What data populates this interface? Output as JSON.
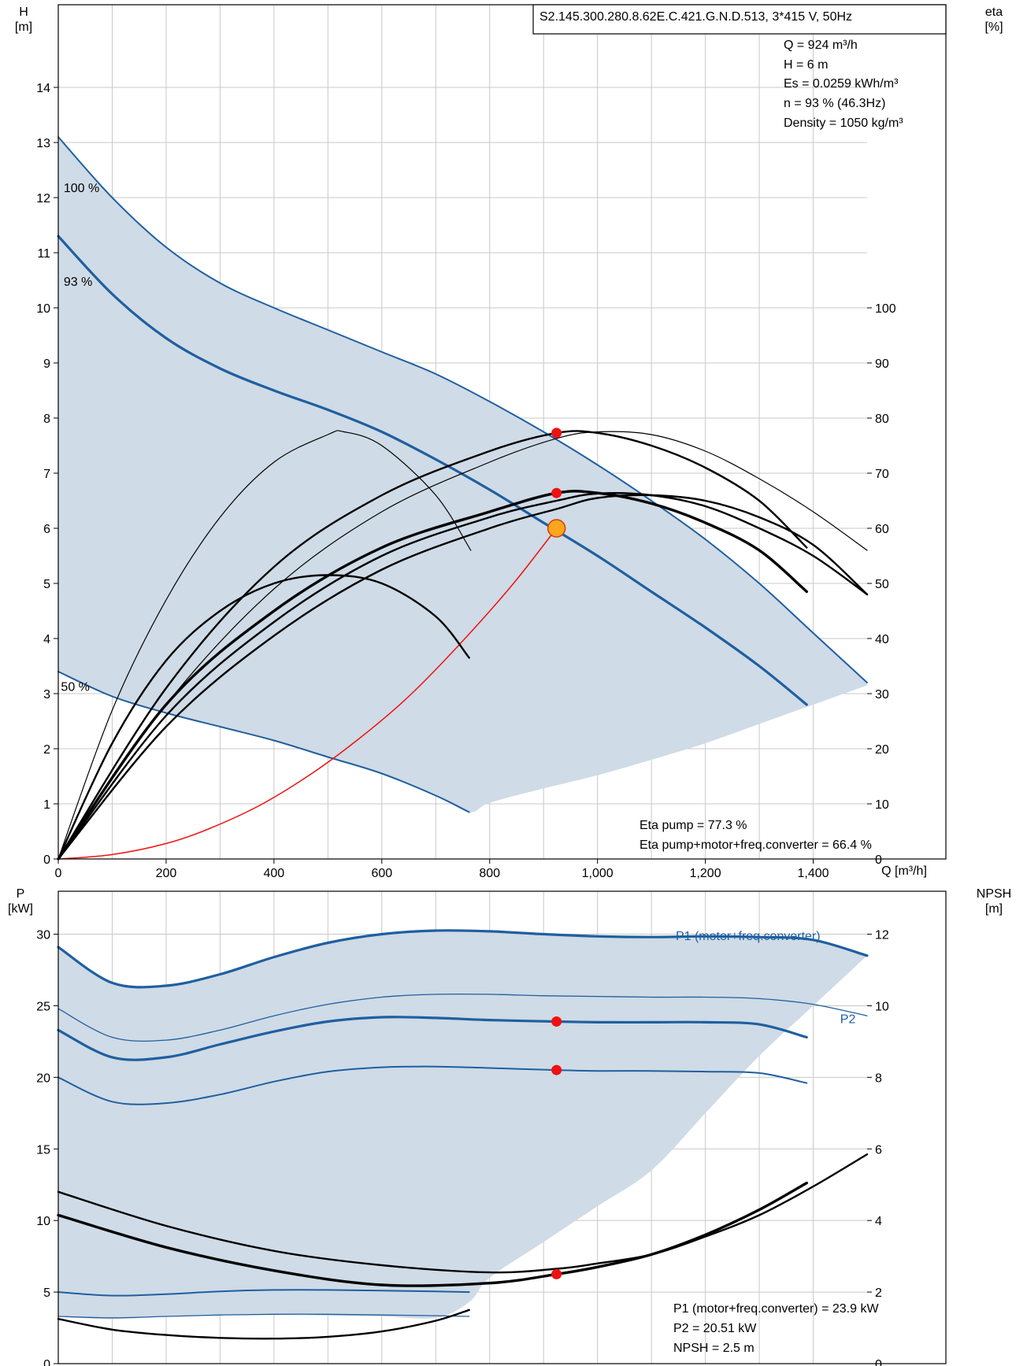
{
  "chart_data": [
    {
      "type": "line",
      "title": "S2.145.300.280.8.62E.C.421.G.N.D.513, 3*415 V, 50Hz",
      "xlabel": "Q [m³/h]",
      "ylabel_left": [
        "H",
        "[m]"
      ],
      "ylabel_right": [
        "eta",
        "[%]"
      ],
      "xlim": [
        0,
        1500
      ],
      "ylim": [
        0,
        15.5
      ],
      "ylim_right": [
        0,
        155
      ],
      "x_ticks": [
        "0",
        "200",
        "400",
        "600",
        "800",
        "1,000",
        "1,200",
        "1,400"
      ],
      "y_ticks": [
        "0",
        "1",
        "2",
        "3",
        "4",
        "5",
        "6",
        "7",
        "8",
        "9",
        "10",
        "11",
        "12",
        "13",
        "14"
      ],
      "y_ticks_right": [
        "0",
        "10",
        "20",
        "30",
        "40",
        "50",
        "60",
        "70",
        "80",
        "90",
        "100"
      ],
      "grid": true,
      "info": [
        "Q = 924 m³/h",
        "H = 6 m",
        "Es = 0.0259 kWh/m³",
        "n = 93 % (46.3Hz)",
        "Density = 1050 kg/m³"
      ],
      "footer": [
        "Eta pump = 77.3 %",
        "Eta pump+motor+freq.converter = 66.4 %"
      ],
      "curve_labels": [
        {
          "text": "100 %",
          "x": 10,
          "y": 12.1
        },
        {
          "text": "93 %",
          "x": 10,
          "y": 10.4
        },
        {
          "text": "50 %",
          "x": 5,
          "y": 3.05
        }
      ],
      "series": [
        {
          "name": "100 %",
          "axis": "left",
          "style": "blue",
          "x": [
            0,
            100,
            200,
            300,
            400,
            500,
            600,
            700,
            800,
            900,
            1000,
            1100,
            1200,
            1300,
            1400,
            1500
          ],
          "y": [
            13.1,
            12.0,
            11.1,
            10.45,
            10.0,
            9.6,
            9.2,
            8.8,
            8.3,
            7.75,
            7.15,
            6.5,
            5.8,
            5.0,
            4.1,
            3.2
          ]
        },
        {
          "name": "93 %",
          "axis": "left",
          "style": "blue-bold",
          "x": [
            0,
            100,
            200,
            300,
            400,
            500,
            600,
            700,
            800,
            900,
            1000,
            1100,
            1200,
            1300,
            1388
          ],
          "y": [
            11.3,
            10.25,
            9.45,
            8.9,
            8.5,
            8.15,
            7.75,
            7.25,
            6.7,
            6.1,
            5.5,
            4.85,
            4.2,
            3.5,
            2.8
          ]
        },
        {
          "name": "50 %",
          "axis": "left",
          "style": "blue",
          "x": [
            0,
            100,
            200,
            300,
            400,
            500,
            600,
            700,
            762
          ],
          "y": [
            3.4,
            2.95,
            2.65,
            2.4,
            2.15,
            1.85,
            1.55,
            1.15,
            0.85
          ]
        },
        {
          "name": "system curve",
          "axis": "left",
          "style": "red",
          "x": [
            0,
            100,
            200,
            280,
            375,
            470,
            560,
            650,
            740,
            840,
            924
          ],
          "y": [
            0,
            0.08,
            0.28,
            0.55,
            0.98,
            1.55,
            2.2,
            2.95,
            3.85,
            4.95,
            6.0
          ]
        },
        {
          "name": "eta pump 100%",
          "axis": "right",
          "style": "black-thin",
          "x": [
            0,
            100,
            200,
            300,
            400,
            500,
            530,
            600,
            700,
            765
          ],
          "y": [
            0,
            27,
            47,
            62,
            72,
            77,
            77.5,
            75,
            66,
            56
          ]
        },
        {
          "name": "eta pump 93%",
          "axis": "right",
          "style": "black-thin",
          "x": [
            0,
            200,
            400,
            600,
            800,
            924,
            1000,
            1100,
            1200,
            1300,
            1400,
            1500
          ],
          "y": [
            0,
            28,
            49,
            63,
            72,
            76.3,
            77.5,
            77,
            74,
            69,
            63,
            56
          ]
        },
        {
          "name": "eta pump working",
          "axis": "right",
          "style": "black",
          "x": [
            0,
            200,
            400,
            600,
            800,
            924,
            1000,
            1100,
            1200,
            1300,
            1388
          ],
          "y": [
            0,
            31,
            53,
            66,
            74,
            77.3,
            77.3,
            75,
            71,
            65,
            56.5
          ]
        },
        {
          "name": "eta motor+fc 100%",
          "axis": "right",
          "style": "black",
          "x": [
            0,
            200,
            400,
            600,
            800,
            924,
            1000,
            1100,
            1200,
            1300,
            1400,
            1500
          ],
          "y": [
            0,
            26,
            43,
            55,
            62,
            65,
            66.3,
            66,
            64,
            60,
            55,
            48
          ]
        },
        {
          "name": "eta motor+fc working",
          "axis": "right",
          "style": "black-bold",
          "x": [
            0,
            200,
            400,
            600,
            800,
            924,
            1000,
            1100,
            1200,
            1300,
            1388
          ],
          "y": [
            0,
            28,
            45,
            56.5,
            63,
            66.4,
            66.4,
            64.5,
            61,
            56,
            48.5
          ]
        },
        {
          "name": "eta motor+fc 93%",
          "axis": "right",
          "style": "black",
          "x": [
            0,
            200,
            400,
            600,
            800,
            924,
            1000,
            1100,
            1200,
            1300,
            1400,
            1500
          ],
          "y": [
            0,
            24,
            40.5,
            52.5,
            60,
            63.5,
            65.5,
            66,
            65,
            62,
            57,
            48
          ]
        },
        {
          "name": "eta 50%",
          "axis": "right",
          "style": "black",
          "x": [
            0,
            100,
            200,
            300,
            400,
            500,
            600,
            700,
            762
          ],
          "y": [
            0,
            21,
            36,
            45,
            50,
            51.5,
            50,
            44,
            36.5
          ]
        }
      ],
      "envelope": {
        "upper_x": [
          0,
          100,
          200,
          300,
          400,
          500,
          600,
          700,
          800,
          900,
          1000,
          1100,
          1200,
          1300,
          1400,
          1500
        ],
        "upper_y": [
          13.1,
          12.0,
          11.1,
          10.45,
          10.0,
          9.6,
          9.2,
          8.8,
          8.3,
          7.75,
          7.15,
          6.5,
          5.8,
          5.0,
          4.1,
          3.2
        ],
        "lower_x": [
          1500,
          1400,
          1300,
          1200,
          1100,
          1000,
          900,
          800,
          762,
          700,
          600,
          500,
          400,
          300,
          200,
          100,
          0
        ],
        "lower_y": [
          3.15,
          2.8,
          2.45,
          2.1,
          1.8,
          1.52,
          1.28,
          1.02,
          0.85,
          1.15,
          1.55,
          1.85,
          2.15,
          2.4,
          2.65,
          2.95,
          3.4
        ]
      },
      "duty_points": [
        {
          "axis": "left",
          "x": 924,
          "y": 6.0,
          "style": "orange"
        },
        {
          "axis": "right",
          "x": 924,
          "y": 77.3,
          "style": "red"
        },
        {
          "axis": "right",
          "x": 924,
          "y": 66.4,
          "style": "red"
        }
      ]
    },
    {
      "type": "line",
      "title": "",
      "xlabel": "",
      "ylabel_left": [
        "P",
        "[kW]"
      ],
      "ylabel_right": [
        "NPSH",
        "[m]"
      ],
      "xlim": [
        0,
        1500
      ],
      "ylim": [
        0,
        33
      ],
      "ylim_right": [
        0,
        13.2
      ],
      "y_ticks": [
        "0",
        "5",
        "10",
        "15",
        "20",
        "25",
        "30"
      ],
      "y_ticks_right": [
        "0",
        "2",
        "4",
        "6",
        "8",
        "10",
        "12"
      ],
      "grid": true,
      "footer": [
        "P1 (motor+freq.converter) = 23.9 kW",
        "P2 = 20.51 kW",
        "NPSH = 2.5 m"
      ],
      "curve_labels": [
        {
          "text": "P1 (motor+freq.converter)",
          "x": 1145,
          "y": 29.6
        },
        {
          "text": "P2",
          "x": 1450,
          "y": 23.8
        }
      ],
      "series": [
        {
          "name": "P1 (motor+freq.converter)",
          "axis": "left",
          "style": "blue-bold",
          "x": [
            0,
            100,
            200,
            300,
            400,
            500,
            600,
            700,
            800,
            900,
            1000,
            1100,
            1200,
            1300,
            1400,
            1500
          ],
          "y": [
            29.1,
            26.6,
            26.4,
            27.2,
            28.4,
            29.4,
            30.0,
            30.25,
            30.2,
            30.0,
            29.85,
            29.8,
            29.85,
            29.8,
            29.6,
            28.5
          ]
        },
        {
          "name": "P2",
          "axis": "left",
          "style": "blue-thin",
          "x": [
            0,
            100,
            200,
            300,
            400,
            500,
            600,
            700,
            800,
            900,
            1000,
            1100,
            1200,
            1300,
            1400,
            1500
          ],
          "y": [
            24.8,
            22.8,
            22.6,
            23.3,
            24.3,
            25.1,
            25.6,
            25.8,
            25.8,
            25.7,
            25.65,
            25.6,
            25.6,
            25.5,
            25.1,
            24.3
          ]
        },
        {
          "name": "P1 working",
          "axis": "left",
          "style": "blue-bold",
          "x": [
            0,
            100,
            200,
            300,
            400,
            500,
            600,
            700,
            800,
            924,
            1000,
            1100,
            1200,
            1300,
            1388
          ],
          "y": [
            23.3,
            21.4,
            21.4,
            22.3,
            23.2,
            23.9,
            24.2,
            24.15,
            24.0,
            23.9,
            23.85,
            23.85,
            23.85,
            23.7,
            22.8
          ]
        },
        {
          "name": "P2 working",
          "axis": "left",
          "style": "blue",
          "x": [
            0,
            100,
            200,
            300,
            400,
            500,
            600,
            700,
            800,
            924,
            1000,
            1100,
            1200,
            1300,
            1388
          ],
          "y": [
            20.0,
            18.3,
            18.2,
            18.8,
            19.7,
            20.4,
            20.7,
            20.75,
            20.65,
            20.51,
            20.45,
            20.45,
            20.4,
            20.3,
            19.6
          ]
        },
        {
          "name": "P1 50%",
          "axis": "left",
          "style": "blue",
          "x": [
            0,
            100,
            200,
            300,
            400,
            500,
            600,
            700,
            762
          ],
          "y": [
            5.0,
            4.75,
            4.85,
            5.05,
            5.15,
            5.15,
            5.1,
            5.05,
            5.0
          ]
        },
        {
          "name": "P2 50%",
          "axis": "left",
          "style": "blue-thin",
          "x": [
            0,
            100,
            200,
            300,
            400,
            500,
            600,
            700,
            762
          ],
          "y": [
            3.3,
            3.2,
            3.3,
            3.4,
            3.45,
            3.45,
            3.4,
            3.35,
            3.3
          ]
        },
        {
          "name": "NPSH 100%",
          "axis": "right",
          "style": "black",
          "x": [
            0,
            200,
            400,
            600,
            800,
            924,
            1000,
            1100,
            1200,
            1300,
            1400,
            1500
          ],
          "y": [
            4.8,
            3.85,
            3.15,
            2.75,
            2.55,
            2.65,
            2.8,
            3.05,
            3.55,
            4.15,
            4.95,
            5.85
          ]
        },
        {
          "name": "NPSH working",
          "axis": "right",
          "style": "black-bold",
          "x": [
            0,
            200,
            400,
            600,
            800,
            924,
            1000,
            1100,
            1200,
            1300,
            1388
          ],
          "y": [
            4.15,
            3.25,
            2.6,
            2.2,
            2.25,
            2.5,
            2.7,
            3.05,
            3.6,
            4.3,
            5.05
          ]
        },
        {
          "name": "NPSH 50%",
          "axis": "right",
          "style": "black",
          "x": [
            0,
            100,
            200,
            300,
            400,
            500,
            600,
            700,
            762
          ],
          "y": [
            1.25,
            0.95,
            0.8,
            0.72,
            0.7,
            0.75,
            0.9,
            1.2,
            1.5
          ]
        }
      ],
      "envelope": {
        "upper_x": [
          0,
          100,
          200,
          300,
          400,
          500,
          600,
          700,
          800,
          900,
          1000,
          1100,
          1200,
          1300,
          1400,
          1500
        ],
        "upper_y": [
          29.1,
          26.6,
          26.4,
          27.2,
          28.4,
          29.4,
          30.0,
          30.25,
          30.2,
          30.0,
          29.85,
          29.8,
          29.85,
          29.8,
          29.6,
          28.5
        ],
        "lower_x": [
          1500,
          1400,
          1300,
          1200,
          1100,
          1000,
          900,
          800,
          762,
          700,
          600,
          500,
          400,
          300,
          200,
          100,
          0
        ],
        "lower_y": [
          28.5,
          25.0,
          21.5,
          17.5,
          13.5,
          11.0,
          8.5,
          6.0,
          4.3,
          3.2,
          3.3,
          3.35,
          3.4,
          3.4,
          3.3,
          3.1,
          3.3
        ]
      },
      "duty_points": [
        {
          "axis": "left",
          "x": 924,
          "y": 23.9,
          "style": "red"
        },
        {
          "axis": "left",
          "x": 924,
          "y": 20.51,
          "style": "red"
        },
        {
          "axis": "right",
          "x": 924,
          "y": 2.5,
          "style": "red"
        }
      ]
    }
  ]
}
